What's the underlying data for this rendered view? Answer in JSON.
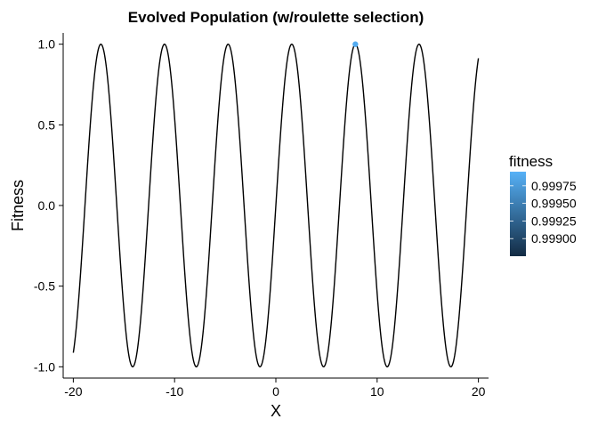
{
  "chart_data": {
    "type": "line",
    "title": "Evolved Population (w/roulette selection)",
    "xlabel": "X",
    "ylabel": "Fitness",
    "xlim": [
      -21,
      21
    ],
    "ylim": [
      -1.07,
      1.07
    ],
    "x_ticks": [
      -20,
      -10,
      0,
      10,
      20
    ],
    "x_tick_labels": [
      "-20",
      "-10",
      "0",
      "10",
      "20"
    ],
    "y_ticks": [
      -1.0,
      -0.5,
      0.0,
      0.5,
      1.0
    ],
    "y_tick_labels": [
      "-1.0",
      "-0.5",
      "0.0",
      "0.5",
      "1.0"
    ],
    "grid": false,
    "series": [
      {
        "function": "sin(x)",
        "x_range": [
          -20,
          20
        ],
        "color": "#000000"
      }
    ],
    "points": [
      {
        "x": 7.85,
        "y": 0.9999,
        "fitness": 0.9999
      }
    ],
    "legend": {
      "title": "fitness",
      "placement": "right",
      "type": "colorbar",
      "range": [
        0.99875,
        0.99995
      ],
      "ticks": [
        0.999,
        0.99925,
        0.9995,
        0.99975
      ],
      "tick_labels": [
        "0.99900",
        "0.99925",
        "0.99950",
        "0.99975"
      ],
      "color_low": "#132B43",
      "color_high": "#56B1F7"
    }
  }
}
